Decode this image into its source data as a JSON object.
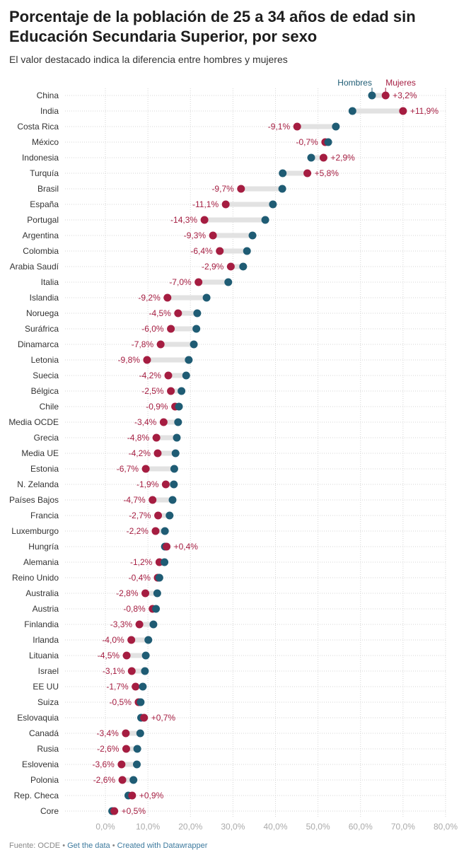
{
  "title": "Porcentaje de la población de 25 a 34 años de edad sin Educación Secundaria Superior, por sexo",
  "subtitle": "El valor destacado indica la diferencia entre hombres y mujeres",
  "footer": {
    "source": "Fuente: OCDE",
    "get_data": "Get the data",
    "created_with": "Created with Datawrapper"
  },
  "colors": {
    "hombres": "#1f5c74",
    "mujeres": "#a51d41",
    "range": "#e2e2e2",
    "grid": "#d6d6d6",
    "tick": "#aaaaaa"
  },
  "chart_data": {
    "type": "range-plot",
    "title": "Porcentaje de la población de 25 a 34 años de edad sin Educación Secundaria Superior, por sexo",
    "subtitle": "El valor destacado indica la diferencia entre hombres y mujeres",
    "xlim": [
      0,
      80
    ],
    "x_ticks": [
      "0,0%",
      "10,0%",
      "20,0%",
      "30,0%",
      "40,0%",
      "50,0%",
      "60,0%",
      "70,0%",
      "80,0%"
    ],
    "grid": true,
    "legend": {
      "position": "top-right",
      "hombres": "Hombres",
      "mujeres": "Mujeres"
    },
    "rows": [
      {
        "country": "China",
        "hombres": 62.7,
        "mujeres": 65.9,
        "diff": "+3,2%"
      },
      {
        "country": "India",
        "hombres": 58.1,
        "mujeres": 70.0,
        "diff": "+11,9%"
      },
      {
        "country": "Costa Rica",
        "hombres": 54.2,
        "mujeres": 45.1,
        "diff": "-9,1%"
      },
      {
        "country": "México",
        "hombres": 52.4,
        "mujeres": 51.7,
        "diff": "-0,7%"
      },
      {
        "country": "Indonesia",
        "hombres": 48.4,
        "mujeres": 51.3,
        "diff": "+2,9%"
      },
      {
        "country": "Turquía",
        "hombres": 41.7,
        "mujeres": 47.5,
        "diff": "+5,8%"
      },
      {
        "country": "Brasil",
        "hombres": 41.6,
        "mujeres": 31.9,
        "diff": "-9,7%"
      },
      {
        "country": "España",
        "hombres": 39.4,
        "mujeres": 28.3,
        "diff": "-11,1%"
      },
      {
        "country": "Portugal",
        "hombres": 37.6,
        "mujeres": 23.3,
        "diff": "-14,3%"
      },
      {
        "country": "Argentina",
        "hombres": 34.6,
        "mujeres": 25.3,
        "diff": "-9,3%"
      },
      {
        "country": "Colombia",
        "hombres": 33.3,
        "mujeres": 26.9,
        "diff": "-6,4%"
      },
      {
        "country": "Arabia Saudí",
        "hombres": 32.4,
        "mujeres": 29.5,
        "diff": "-2,9%"
      },
      {
        "country": "Italia",
        "hombres": 28.9,
        "mujeres": 21.9,
        "diff": "-7,0%"
      },
      {
        "country": "Islandia",
        "hombres": 23.8,
        "mujeres": 14.6,
        "diff": "-9,2%"
      },
      {
        "country": "Noruega",
        "hombres": 21.6,
        "mujeres": 17.1,
        "diff": "-4,5%"
      },
      {
        "country": "Suráfrica",
        "hombres": 21.4,
        "mujeres": 15.4,
        "diff": "-6,0%"
      },
      {
        "country": "Dinamarca",
        "hombres": 20.8,
        "mujeres": 13.0,
        "diff": "-7,8%"
      },
      {
        "country": "Letonia",
        "hombres": 19.6,
        "mujeres": 9.8,
        "diff": "-9,8%"
      },
      {
        "country": "Suecia",
        "hombres": 19.0,
        "mujeres": 14.8,
        "diff": "-4,2%"
      },
      {
        "country": "Bélgica",
        "hombres": 17.9,
        "mujeres": 15.4,
        "diff": "-2,5%"
      },
      {
        "country": "Chile",
        "hombres": 17.3,
        "mujeres": 16.4,
        "diff": "-0,9%"
      },
      {
        "country": "Media OCDE",
        "hombres": 17.1,
        "mujeres": 13.7,
        "diff": "-3,4%"
      },
      {
        "country": "Grecia",
        "hombres": 16.8,
        "mujeres": 12.0,
        "diff": "-4,8%"
      },
      {
        "country": "Media UE",
        "hombres": 16.5,
        "mujeres": 12.3,
        "diff": "-4,2%"
      },
      {
        "country": "Estonia",
        "hombres": 16.2,
        "mujeres": 9.5,
        "diff": "-6,7%"
      },
      {
        "country": "N. Zelanda",
        "hombres": 16.1,
        "mujeres": 14.2,
        "diff": "-1,9%"
      },
      {
        "country": "Países Bajos",
        "hombres": 15.8,
        "mujeres": 11.1,
        "diff": "-4,7%"
      },
      {
        "country": "Francia",
        "hombres": 15.1,
        "mujeres": 12.4,
        "diff": "-2,7%"
      },
      {
        "country": "Luxemburgo",
        "hombres": 14.0,
        "mujeres": 11.8,
        "diff": "-2,2%"
      },
      {
        "country": "Hungría",
        "hombres": 14.0,
        "mujeres": 14.4,
        "diff": "+0,4%"
      },
      {
        "country": "Alemania",
        "hombres": 13.9,
        "mujeres": 12.7,
        "diff": "-1,2%"
      },
      {
        "country": "Reino Unido",
        "hombres": 12.7,
        "mujeres": 12.3,
        "diff": "-0,4%"
      },
      {
        "country": "Australia",
        "hombres": 12.2,
        "mujeres": 9.4,
        "diff": "-2,8%"
      },
      {
        "country": "Austria",
        "hombres": 11.9,
        "mujeres": 11.1,
        "diff": "-0,8%"
      },
      {
        "country": "Finlandia",
        "hombres": 11.3,
        "mujeres": 8.0,
        "diff": "-3,3%"
      },
      {
        "country": "Irlanda",
        "hombres": 10.1,
        "mujeres": 6.1,
        "diff": "-4,0%"
      },
      {
        "country": "Lituania",
        "hombres": 9.5,
        "mujeres": 5.0,
        "diff": "-4,5%"
      },
      {
        "country": "Israel",
        "hombres": 9.3,
        "mujeres": 6.2,
        "diff": "-3,1%"
      },
      {
        "country": "EE UU",
        "hombres": 8.8,
        "mujeres": 7.1,
        "diff": "-1,7%"
      },
      {
        "country": "Suiza",
        "hombres": 8.3,
        "mujeres": 7.8,
        "diff": "-0,5%"
      },
      {
        "country": "Eslovaquia",
        "hombres": 8.4,
        "mujeres": 9.1,
        "diff": "+0,7%"
      },
      {
        "country": "Canadá",
        "hombres": 8.2,
        "mujeres": 4.8,
        "diff": "-3,4%"
      },
      {
        "country": "Rusia",
        "hombres": 7.5,
        "mujeres": 4.9,
        "diff": "-2,6%"
      },
      {
        "country": "Eslovenia",
        "hombres": 7.4,
        "mujeres": 3.8,
        "diff": "-3,6%"
      },
      {
        "country": "Polonia",
        "hombres": 6.6,
        "mujeres": 4.0,
        "diff": "-2,6%"
      },
      {
        "country": "Rep. Checa",
        "hombres": 5.4,
        "mujeres": 6.3,
        "diff": "+0,9%"
      },
      {
        "country": "Core",
        "hombres": 1.6,
        "mujeres": 2.1,
        "diff": "+0,5%"
      }
    ]
  }
}
